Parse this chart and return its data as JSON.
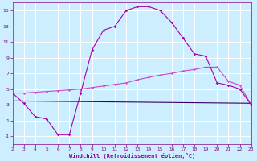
{
  "bg_color": "#cceeff",
  "grid_color": "#ffffff",
  "xlabel": "Windchill (Refroidissement éolien,°C)",
  "xlim": [
    2,
    23
  ],
  "ylim": [
    -2,
    16
  ],
  "xticks": [
    2,
    3,
    4,
    5,
    6,
    7,
    8,
    9,
    10,
    11,
    12,
    13,
    14,
    15,
    16,
    17,
    18,
    19,
    20,
    21,
    22,
    23
  ],
  "yticks": [
    -1,
    1,
    3,
    5,
    7,
    9,
    11,
    13,
    15
  ],
  "series1_color": "#aa00aa",
  "series1_x": [
    2,
    3,
    4,
    5,
    6,
    7,
    8,
    9,
    10,
    11,
    12,
    13,
    14,
    15,
    16,
    17,
    18,
    19,
    20,
    21,
    22,
    23
  ],
  "series1_y": [
    4.5,
    3.2,
    1.5,
    1.2,
    -0.8,
    -0.8,
    4.5,
    10.0,
    12.5,
    13.0,
    15.0,
    15.5,
    15.5,
    15.0,
    13.5,
    11.5,
    9.5,
    9.2,
    5.8,
    5.5,
    5.0,
    3.0
  ],
  "series2_color": "#cc44cc",
  "series2_x": [
    2,
    3,
    4,
    5,
    6,
    7,
    8,
    9,
    10,
    11,
    12,
    13,
    14,
    15,
    16,
    17,
    18,
    19,
    20,
    21,
    22,
    23
  ],
  "series2_y": [
    4.5,
    4.5,
    4.6,
    4.7,
    4.8,
    4.9,
    5.0,
    5.2,
    5.4,
    5.6,
    5.8,
    6.2,
    6.5,
    6.8,
    7.0,
    7.3,
    7.5,
    7.8,
    7.8,
    6.0,
    5.5,
    3.0
  ],
  "series3_color": "#330066",
  "series3_x": [
    2,
    23
  ],
  "series3_y": [
    3.5,
    3.2
  ],
  "tick_color": "#880088",
  "label_color": "#880088"
}
